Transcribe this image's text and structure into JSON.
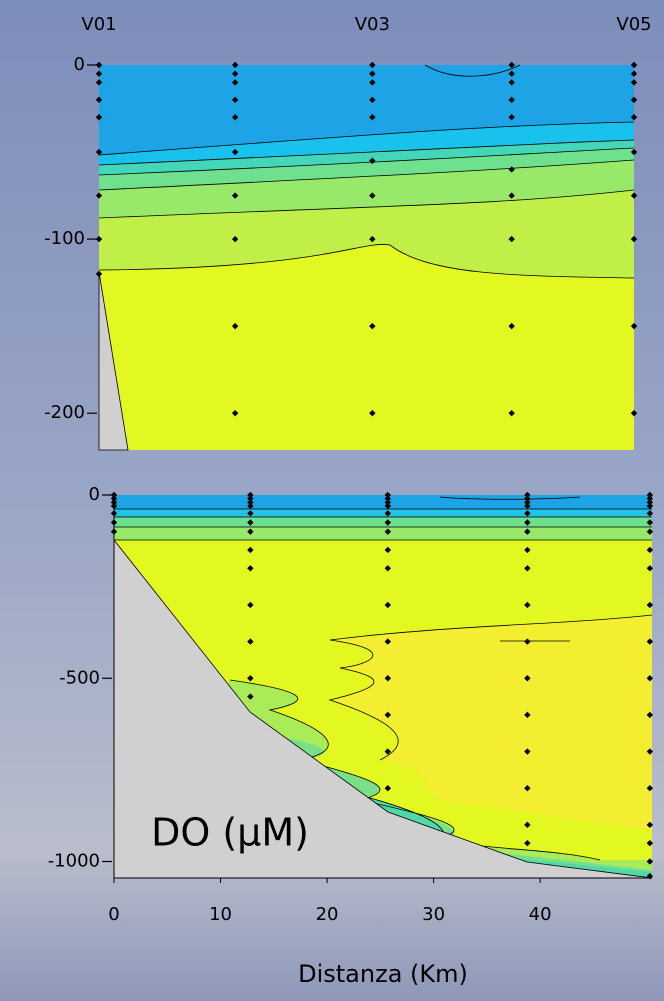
{
  "chart_data": [
    {
      "type": "scatter",
      "xlim": [
        0,
        50.3
      ],
      "ylim": [
        -220,
        0
      ],
      "xticks": [
        {
          "value": 0,
          "label": "V01"
        },
        {
          "value": 25.7,
          "label": "V03"
        },
        {
          "value": 50.3,
          "label": "V05"
        }
      ],
      "yticks": [
        0,
        -100,
        -200
      ],
      "color": "#000000",
      "x": [
        0,
        0,
        0,
        0,
        0,
        0,
        0,
        0,
        0,
        12.8,
        12.8,
        12.8,
        12.8,
        12.8,
        12.8,
        12.8,
        12.8,
        12.8,
        12.8,
        25.7,
        25.7,
        25.7,
        25.7,
        25.7,
        25.7,
        25.7,
        25.7,
        25.7,
        25.7,
        38.8,
        38.8,
        38.8,
        38.8,
        38.8,
        38.8,
        38.8,
        38.8,
        38.8,
        38.8,
        50.3,
        50.3,
        50.3,
        50.3,
        50.3,
        50.3,
        50.3,
        50.3,
        50.3,
        50.3
      ],
      "y": [
        0,
        -5,
        -10,
        -20,
        -30,
        -50,
        -75,
        -100,
        -120,
        0,
        -5,
        -10,
        -20,
        -30,
        -50,
        -75,
        -100,
        -150,
        -200,
        0,
        -5,
        -10,
        -20,
        -30,
        -55,
        -75,
        -100,
        -150,
        -200,
        0,
        -5,
        -10,
        -20,
        -30,
        -60,
        -75,
        -100,
        -150,
        -200,
        0,
        -5,
        -10,
        -20,
        -30,
        -50,
        -75,
        -100,
        -150,
        -200
      ]
    },
    {
      "type": "scatter",
      "xlim": [
        0,
        50.5
      ],
      "ylim": [
        -1045,
        0
      ],
      "xticks": [
        0,
        10,
        20,
        30,
        40
      ],
      "yticks": [
        0,
        -500,
        -1000
      ],
      "xlabel": "Distanza (Km)",
      "annotation": "DO (μM)",
      "color": "#000000",
      "x": [
        0,
        0,
        0,
        0,
        0,
        0,
        0,
        12.8,
        12.8,
        12.8,
        12.8,
        12.8,
        12.8,
        12.8,
        12.8,
        12.8,
        12.8,
        12.8,
        12.8,
        12.8,
        25.7,
        25.7,
        25.7,
        25.7,
        25.7,
        25.7,
        25.7,
        25.7,
        25.7,
        25.7,
        25.7,
        25.7,
        25.7,
        25.7,
        25.7,
        38.8,
        38.8,
        38.8,
        38.8,
        38.8,
        38.8,
        38.8,
        38.8,
        38.8,
        38.8,
        38.8,
        38.8,
        38.8,
        38.8,
        38.8,
        38.8,
        38.8,
        50.3,
        50.3,
        50.3,
        50.3,
        50.3,
        50.3,
        50.3,
        50.3,
        50.3,
        50.3,
        50.3,
        50.3,
        50.3,
        50.3,
        50.3,
        50.3,
        50.3,
        50.3,
        50.3
      ],
      "y": [
        0,
        -10,
        -20,
        -30,
        -50,
        -75,
        -100,
        0,
        -10,
        -20,
        -30,
        -50,
        -75,
        -100,
        -150,
        -200,
        -300,
        -400,
        -500,
        -550,
        0,
        -10,
        -20,
        -30,
        -50,
        -75,
        -100,
        -150,
        -200,
        -300,
        -400,
        -500,
        -600,
        -700,
        -800,
        0,
        -10,
        -20,
        -30,
        -50,
        -75,
        -100,
        -150,
        -200,
        -300,
        -400,
        -500,
        -600,
        -700,
        -800,
        -900,
        -950,
        0,
        -10,
        -20,
        -30,
        -50,
        -75,
        -100,
        -150,
        -200,
        -300,
        -400,
        -500,
        -600,
        -700,
        -800,
        -900,
        -950,
        -1000,
        -1040
      ]
    }
  ]
}
